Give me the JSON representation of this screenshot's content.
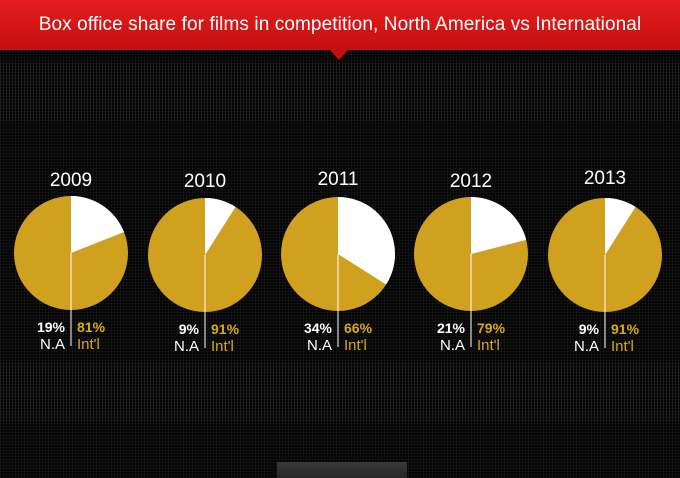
{
  "header": {
    "title": "Box office share for films in competition, North America vs International"
  },
  "chart_data": {
    "type": "pie",
    "categories": [
      "2009",
      "2010",
      "2011",
      "2012",
      "2013"
    ],
    "series": [
      {
        "name": "N.A",
        "values": [
          19,
          9,
          34,
          21,
          9
        ],
        "labels": [
          "19%",
          "9%",
          "34%",
          "21%",
          "9%"
        ],
        "color": "#ffffff"
      },
      {
        "name": "Int'l",
        "values": [
          81,
          91,
          66,
          79,
          91
        ],
        "labels": [
          "81%",
          "91%",
          "66%",
          "79%",
          "91%"
        ],
        "color": "#d0a11e"
      }
    ],
    "title": "Box office share for films in competition, North America vs International"
  }
}
